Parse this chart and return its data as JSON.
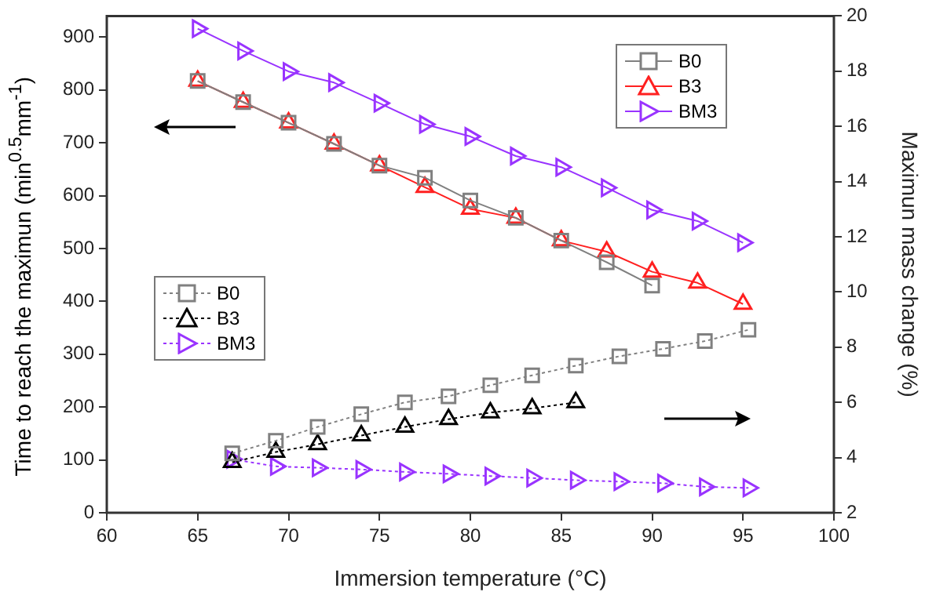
{
  "chart_data": {
    "type": "line",
    "xlabel": "Immersion temperature (°C)",
    "ylabel": "Time to reach the maximun (min$^{0.5}$mm$^{-1}$)",
    "y2label": "Maximun mass change (%)",
    "xlim": [
      60,
      100
    ],
    "xticks": [
      60,
      65,
      70,
      75,
      80,
      85,
      90,
      95,
      100
    ],
    "ylim": [
      0,
      940
    ],
    "yticks": [
      0,
      100,
      200,
      300,
      400,
      500,
      600,
      700,
      800,
      900
    ],
    "y2lim": [
      2,
      20
    ],
    "y2ticks": [
      2,
      4,
      6,
      8,
      10,
      12,
      14,
      16,
      18,
      20
    ],
    "grid": false,
    "legend": "top right",
    "series": [
      {
        "name": "B0",
        "color": "#808080",
        "marker": "square",
        "line_style": "solid",
        "x": [
          65,
          67.5,
          70,
          72.5,
          75,
          77.5,
          80,
          82.5,
          85,
          87.5,
          90
        ],
        "values": [
          817,
          777,
          738,
          698,
          657,
          634,
          591,
          558,
          515,
          474,
          430
        ]
      },
      {
        "name": "B3",
        "color": "#ff2020",
        "marker": "triangle",
        "line_style": "solid",
        "x": [
          65,
          67.5,
          70,
          72.5,
          75,
          77.5,
          80,
          82.5,
          85,
          87.5,
          90,
          92.5,
          95
        ],
        "values": [
          817,
          777,
          738,
          698,
          657,
          616,
          575,
          558,
          515,
          494,
          456,
          435,
          395
        ]
      },
      {
        "name": "BM3",
        "color": "#9933ff",
        "marker": "triangle-right",
        "line_style": "solid",
        "x": [
          65,
          67.5,
          70,
          72.5,
          75,
          77.5,
          80,
          82.5,
          85,
          87.5,
          90,
          92.5,
          95
        ],
        "values": [
          916,
          874,
          835,
          814,
          775,
          735,
          712,
          675,
          654,
          615,
          573,
          552,
          511
        ]
      },
      {
        "name": "B0",
        "color": "#808080",
        "marker": "square",
        "line_style": "dotted",
        "axis": "y2",
        "x": [
          66.9,
          69.3,
          71.6,
          74.0,
          76.4,
          78.8,
          81.1,
          83.4,
          85.8,
          88.2,
          90.6,
          92.9,
          95.3
        ],
        "values": [
          4.15,
          4.61,
          5.11,
          5.57,
          6.0,
          6.22,
          6.62,
          6.98,
          7.33,
          7.67,
          7.94,
          8.22,
          8.63
        ]
      },
      {
        "name": "B3",
        "color": "#000000",
        "marker": "triangle",
        "line_style": "dotted",
        "axis": "y2",
        "x": [
          66.9,
          69.3,
          71.6,
          74.0,
          76.4,
          78.8,
          81.1,
          83.4,
          85.8
        ],
        "values": [
          3.83,
          4.2,
          4.48,
          4.8,
          5.11,
          5.39,
          5.63,
          5.78,
          6.0
        ]
      },
      {
        "name": "BM3",
        "color": "#9933ff",
        "marker": "triangle-right",
        "line_style": "dotted",
        "axis": "y2",
        "x": [
          66.9,
          69.3,
          71.6,
          74.0,
          76.4,
          78.8,
          81.1,
          83.4,
          85.8,
          88.2,
          90.6,
          92.9,
          95.3
        ],
        "values": [
          3.94,
          3.68,
          3.63,
          3.57,
          3.48,
          3.41,
          3.33,
          3.26,
          3.18,
          3.13,
          3.07,
          2.94,
          2.9
        ]
      }
    ]
  }
}
